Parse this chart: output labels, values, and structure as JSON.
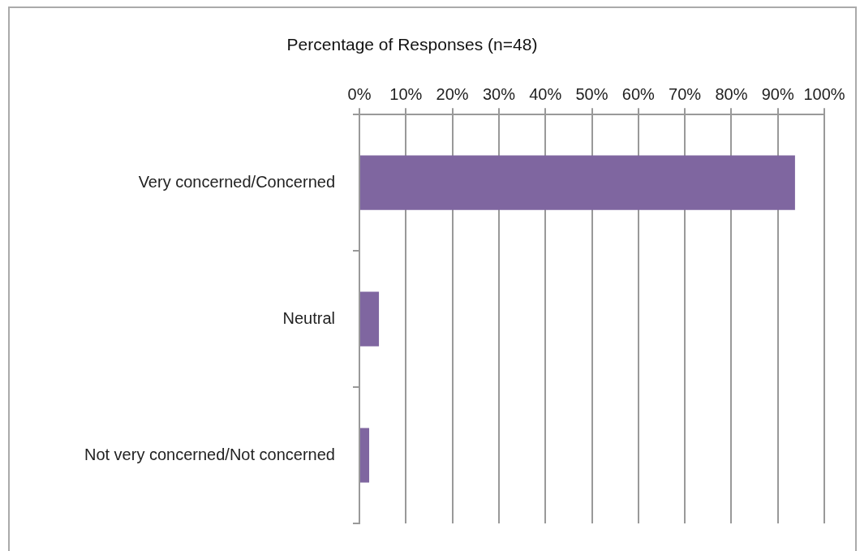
{
  "chart_data": {
    "type": "bar",
    "orientation": "horizontal",
    "title": "Percentage of Responses (n=48)",
    "categories": [
      "Very concerned/Concerned",
      "Neutral",
      "Not very concerned/Not concerned"
    ],
    "values": [
      93.7,
      4.2,
      2.1
    ],
    "color": "#7f66a0",
    "xlim": [
      0,
      100
    ],
    "xticks": [
      {
        "value": 0,
        "label": "0%"
      },
      {
        "value": 10,
        "label": "10%"
      },
      {
        "value": 20,
        "label": "20%"
      },
      {
        "value": 30,
        "label": "30%"
      },
      {
        "value": 40,
        "label": "40%"
      },
      {
        "value": 50,
        "label": "50%"
      },
      {
        "value": 60,
        "label": "60%"
      },
      {
        "value": 70,
        "label": "70%"
      },
      {
        "value": 80,
        "label": "80%"
      },
      {
        "value": 90,
        "label": "90%"
      },
      {
        "value": 100,
        "label": "100%"
      }
    ],
    "grid": "x",
    "legend": false
  }
}
